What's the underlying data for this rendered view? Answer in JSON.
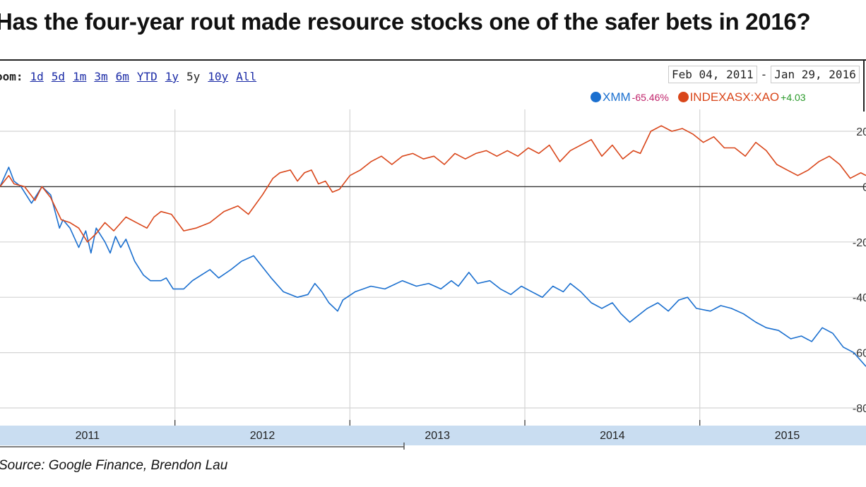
{
  "title": "Has the four-year rout made resource stocks one of the safer bets in 2016?",
  "zoom": {
    "label": "oom:",
    "options": [
      "1d",
      "5d",
      "1m",
      "3m",
      "6m",
      "YTD",
      "1y",
      "5y",
      "10y",
      "All"
    ],
    "active": "5y"
  },
  "date_range": {
    "start": "Feb 04, 2011",
    "separator": "-",
    "end": "Jan 29, 2016"
  },
  "legend": [
    {
      "name": "XMM",
      "change": "-65.46%",
      "color": "#1a6fcf",
      "change_color": "#c0246b"
    },
    {
      "name": "INDEXASX:XAO",
      "change": "+4.03",
      "color": "#d9461a",
      "change_color": "#2a9a2a"
    }
  ],
  "source": "Source: Google Finance, Brendon Lau",
  "colors": {
    "grid": "#d4d4d4",
    "zero_line": "#333333",
    "navigator": "#c9ddf1",
    "xmm": "#1a6fcf",
    "xao": "#d9461a"
  },
  "chart_data": {
    "type": "line",
    "title": "",
    "xlabel": "",
    "ylabel": "",
    "x_range": [
      2011.0,
      2015.95
    ],
    "ylim": [
      -80,
      20
    ],
    "y_ticks": [
      20,
      0,
      -20,
      -40,
      -60,
      -80
    ],
    "y_tick_labels": [
      "20",
      "0",
      "-20",
      "-40",
      "-60",
      "-80"
    ],
    "x_tick_labels": [
      "2011",
      "2012",
      "2013",
      "2014",
      "2015"
    ],
    "grid": true,
    "legend_position": "top-right",
    "series": [
      {
        "name": "XMM",
        "x": [
          2011.0,
          2011.05,
          2011.08,
          2011.12,
          2011.18,
          2011.24,
          2011.29,
          2011.34,
          2011.36,
          2011.4,
          2011.45,
          2011.49,
          2011.52,
          2011.55,
          2011.6,
          2011.63,
          2011.66,
          2011.69,
          2011.72,
          2011.77,
          2011.82,
          2011.86,
          2011.92,
          2011.95,
          2011.99,
          2012.05,
          2012.1,
          2012.15,
          2012.2,
          2012.25,
          2012.32,
          2012.38,
          2012.45,
          2012.55,
          2012.62,
          2012.7,
          2012.76,
          2012.8,
          2012.84,
          2012.88,
          2012.93,
          2012.96,
          2013.03,
          2013.12,
          2013.2,
          2013.3,
          2013.38,
          2013.45,
          2013.52,
          2013.58,
          2013.62,
          2013.68,
          2013.73,
          2013.8,
          2013.86,
          2013.92,
          2013.98,
          2014.04,
          2014.1,
          2014.16,
          2014.22,
          2014.26,
          2014.32,
          2014.38,
          2014.44,
          2014.5,
          2014.55,
          2014.6,
          2014.64,
          2014.7,
          2014.76,
          2014.82,
          2014.88,
          2014.93,
          2014.98,
          2015.06,
          2015.12,
          2015.18,
          2015.25,
          2015.32,
          2015.38,
          2015.45,
          2015.52,
          2015.58,
          2015.64,
          2015.7,
          2015.76,
          2015.82,
          2015.88,
          2015.95
        ],
        "values": [
          0,
          7,
          2,
          0,
          -6,
          0,
          -3,
          -15,
          -12,
          -15,
          -22,
          -16,
          -24,
          -15,
          -20,
          -24,
          -18,
          -22,
          -19,
          -27,
          -32,
          -34,
          -34,
          -33,
          -37,
          -37,
          -34,
          -32,
          -30,
          -33,
          -30,
          -27,
          -25,
          -33,
          -38,
          -40,
          -39,
          -35,
          -38,
          -42,
          -45,
          -41,
          -38,
          -36,
          -37,
          -34,
          -36,
          -35,
          -37,
          -34,
          -36,
          -31,
          -35,
          -34,
          -37,
          -39,
          -36,
          -38,
          -40,
          -36,
          -38,
          -35,
          -38,
          -42,
          -44,
          -42,
          -46,
          -49,
          -47,
          -44,
          -42,
          -45,
          -41,
          -40,
          -44,
          -45,
          -43,
          -44,
          -46,
          -49,
          -51,
          -52,
          -55,
          -54,
          -56,
          -51,
          -53,
          -58,
          -60,
          -65
        ]
      },
      {
        "name": "INDEXASX:XAO",
        "x": [
          2011.0,
          2011.05,
          2011.08,
          2011.14,
          2011.2,
          2011.24,
          2011.29,
          2011.35,
          2011.4,
          2011.45,
          2011.5,
          2011.55,
          2011.6,
          2011.65,
          2011.72,
          2011.78,
          2011.84,
          2011.88,
          2011.92,
          2011.98,
          2012.05,
          2012.12,
          2012.2,
          2012.28,
          2012.36,
          2012.42,
          2012.5,
          2012.56,
          2012.6,
          2012.66,
          2012.7,
          2012.74,
          2012.78,
          2012.82,
          2012.86,
          2012.9,
          2012.94,
          2013.0,
          2013.06,
          2013.12,
          2013.18,
          2013.24,
          2013.3,
          2013.36,
          2013.42,
          2013.48,
          2013.54,
          2013.6,
          2013.66,
          2013.72,
          2013.78,
          2013.84,
          2013.9,
          2013.96,
          2014.02,
          2014.08,
          2014.14,
          2014.2,
          2014.26,
          2014.32,
          2014.38,
          2014.44,
          2014.5,
          2014.56,
          2014.62,
          2014.66,
          2014.72,
          2014.78,
          2014.84,
          2014.9,
          2014.96,
          2015.02,
          2015.08,
          2015.14,
          2015.2,
          2015.26,
          2015.32,
          2015.38,
          2015.44,
          2015.5,
          2015.56,
          2015.62,
          2015.68,
          2015.74,
          2015.8,
          2015.86,
          2015.92,
          2015.95
        ],
        "values": [
          0,
          4,
          1,
          0,
          -5,
          0,
          -4,
          -12,
          -13,
          -15,
          -20,
          -17,
          -13,
          -16,
          -11,
          -13,
          -15,
          -11,
          -9,
          -10,
          -16,
          -15,
          -13,
          -9,
          -7,
          -10,
          -3,
          3,
          5,
          6,
          2,
          5,
          6,
          1,
          2,
          -2,
          -1,
          4,
          6,
          9,
          11,
          8,
          11,
          12,
          10,
          11,
          8,
          12,
          10,
          12,
          13,
          11,
          13,
          11,
          14,
          12,
          15,
          9,
          13,
          15,
          17,
          11,
          15,
          10,
          13,
          12,
          20,
          22,
          20,
          21,
          19,
          16,
          18,
          14,
          14,
          11,
          16,
          13,
          8,
          6,
          4,
          6,
          9,
          11,
          8,
          3,
          5,
          4
        ]
      }
    ]
  }
}
